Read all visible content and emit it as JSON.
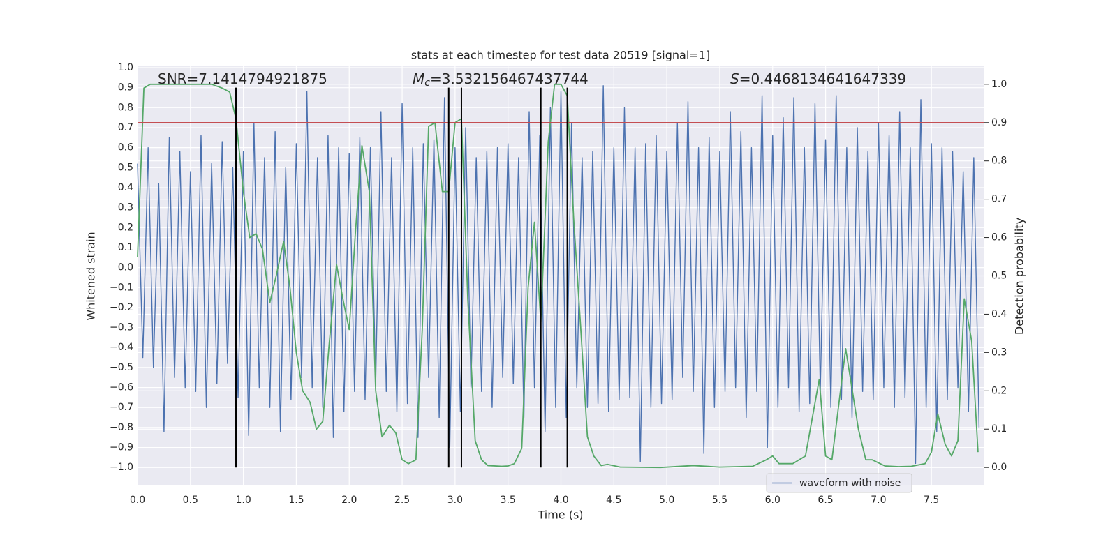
{
  "chart_data": {
    "type": "line",
    "title": "stats at each timestep for test data 20519 [signal=1]",
    "xlabel": "Time (s)",
    "ylabel": "Whitened strain",
    "y2label": "Detection probability",
    "annotations": [
      {
        "value": "SNR=7.1414794921875"
      },
      {
        "symbol": "M",
        "sub": "c",
        "value": "=3.532156467437744"
      },
      {
        "symbol": "S",
        "value": "=0.4468134641647339"
      }
    ],
    "xlim": [
      0,
      8
    ],
    "ylim": [
      -1.09,
      1.007
    ],
    "y2lim": [
      -0.047,
      1.047
    ],
    "xticks": [
      {
        "value": 0,
        "label": "0.0"
      },
      0.5,
      {
        "value": 1,
        "label": "1.0"
      },
      1.5,
      {
        "value": 2,
        "label": "2.0"
      },
      2.5,
      {
        "value": 3,
        "label": "3.0"
      },
      3.5,
      {
        "value": 4,
        "label": "4.0"
      },
      4.5,
      {
        "value": 5,
        "label": "5.0"
      },
      5.5,
      {
        "value": 6,
        "label": "6.0"
      },
      6.5,
      {
        "value": 7,
        "label": "7.0"
      },
      7.5
    ],
    "yticks": [
      {
        "value": -1,
        "label": "−1.0"
      },
      {
        "value": -0.9,
        "label": "−0.9"
      },
      {
        "value": -0.8,
        "label": "−0.8"
      },
      {
        "value": -0.7,
        "label": "−0.7"
      },
      {
        "value": -0.6,
        "label": "−0.6"
      },
      {
        "value": -0.5,
        "label": "−0.5"
      },
      {
        "value": -0.4,
        "label": "−0.4"
      },
      {
        "value": -0.3,
        "label": "−0.3"
      },
      {
        "value": -0.2,
        "label": "−0.2"
      },
      {
        "value": -0.1,
        "label": "−0.1"
      },
      {
        "value": 0,
        "label": "0.0"
      },
      0.1,
      0.2,
      0.3,
      0.4,
      0.5,
      0.6,
      0.7,
      0.8,
      0.9,
      {
        "value": 1,
        "label": "1.0"
      }
    ],
    "y2ticks": [
      {
        "value": 0,
        "label": "0.0"
      },
      0.1,
      0.2,
      0.3,
      0.4,
      0.5,
      0.6,
      0.7,
      0.8,
      0.9,
      {
        "value": 1,
        "label": "1.0"
      }
    ],
    "grid": true,
    "legend": "lower right",
    "threshold": {
      "value": 0.9,
      "axis": "y2",
      "color": "#c44e52"
    },
    "vlines": {
      "x": [
        0.93,
        2.94,
        3.06,
        3.81,
        4.06
      ],
      "span": [
        -1.0,
        0.9
      ],
      "color": "#000000"
    },
    "series": [
      {
        "name": "waveform with noise",
        "color": "#4c72b0",
        "x": [
          0,
          0.05,
          0.1,
          0.15,
          0.2,
          0.25,
          0.3,
          0.35,
          0.4,
          0.45,
          0.5,
          0.55,
          0.6,
          0.65,
          0.7,
          0.75,
          0.8,
          0.85,
          0.9,
          0.95,
          1,
          1.05,
          1.1,
          1.15,
          1.2,
          1.25,
          1.3,
          1.35,
          1.4,
          1.45,
          1.5,
          1.55,
          1.6,
          1.65,
          1.7,
          1.75,
          1.8,
          1.85,
          1.9,
          1.95,
          2,
          2.05,
          2.1,
          2.15,
          2.2,
          2.25,
          2.3,
          2.35,
          2.4,
          2.45,
          2.5,
          2.55,
          2.6,
          2.65,
          2.7,
          2.75,
          2.8,
          2.85,
          2.9,
          2.95,
          3,
          3.05,
          3.1,
          3.15,
          3.2,
          3.25,
          3.3,
          3.35,
          3.4,
          3.45,
          3.5,
          3.55,
          3.6,
          3.65,
          3.7,
          3.75,
          3.8,
          3.85,
          3.9,
          3.95,
          4,
          4.05,
          4.1,
          4.15,
          4.2,
          4.25,
          4.3,
          4.35,
          4.4,
          4.45,
          4.5,
          4.55,
          4.6,
          4.65,
          4.7,
          4.75,
          4.8,
          4.85,
          4.9,
          4.95,
          5,
          5.05,
          5.1,
          5.15,
          5.2,
          5.25,
          5.3,
          5.35,
          5.4,
          5.45,
          5.5,
          5.55,
          5.6,
          5.65,
          5.7,
          5.75,
          5.8,
          5.85,
          5.9,
          5.95,
          6,
          6.05,
          6.1,
          6.15,
          6.2,
          6.25,
          6.3,
          6.35,
          6.4,
          6.45,
          6.5,
          6.55,
          6.6,
          6.65,
          6.7,
          6.75,
          6.8,
          6.85,
          6.9,
          6.95,
          7,
          7.05,
          7.1,
          7.15,
          7.2,
          7.25,
          7.3,
          7.35,
          7.4,
          7.45,
          7.5,
          7.55,
          7.6,
          7.65,
          7.7,
          7.75,
          7.8,
          7.85,
          7.9,
          7.95
        ],
        "values": [
          0.52,
          -0.45,
          0.6,
          -0.5,
          0.42,
          -0.82,
          0.65,
          -0.55,
          0.58,
          -0.6,
          0.48,
          -0.62,
          0.66,
          -0.7,
          0.52,
          -0.58,
          0.63,
          -0.48,
          0.5,
          -0.65,
          0.58,
          -0.84,
          0.72,
          -0.6,
          0.55,
          -0.7,
          0.68,
          -0.82,
          0.5,
          -0.66,
          0.62,
          -0.55,
          0.88,
          -0.6,
          0.55,
          -0.7,
          0.66,
          -0.85,
          0.6,
          -0.72,
          0.57,
          -0.62,
          0.65,
          -0.66,
          0.6,
          -0.58,
          0.78,
          -0.62,
          0.55,
          -0.72,
          0.82,
          -0.68,
          0.6,
          -0.85,
          0.62,
          -0.55,
          0.64,
          -0.75,
          0.85,
          -0.9,
          0.6,
          -0.72,
          0.7,
          -0.6,
          0.55,
          -0.62,
          0.58,
          -0.7,
          0.6,
          -0.55,
          0.62,
          -0.58,
          0.55,
          -0.75,
          0.78,
          -0.6,
          0.66,
          -0.82,
          0.8,
          -0.7,
          0.88,
          -0.75,
          0.72,
          -0.6,
          0.55,
          -0.7,
          0.58,
          -0.68,
          0.91,
          -0.72,
          0.6,
          -0.66,
          0.8,
          -0.65,
          0.6,
          -0.97,
          0.62,
          -0.7,
          0.66,
          -0.68,
          0.58,
          -0.66,
          0.72,
          -0.55,
          0.83,
          -0.62,
          0.6,
          -0.93,
          0.65,
          -0.7,
          0.58,
          -0.62,
          0.78,
          -0.6,
          0.68,
          -0.75,
          0.6,
          -0.62,
          0.86,
          -0.9,
          0.66,
          -0.7,
          0.75,
          -0.6,
          0.85,
          -0.72,
          0.6,
          -0.68,
          0.82,
          -0.62,
          0.64,
          -0.7,
          0.86,
          -0.66,
          0.6,
          -0.75,
          0.7,
          -0.62,
          0.58,
          -0.66,
          0.72,
          -0.6,
          0.66,
          -0.7,
          0.78,
          -0.65,
          0.6,
          -0.98,
          0.84,
          -0.7,
          0.62,
          -0.82,
          0.6,
          -0.66,
          0.58,
          -0.6,
          0.48,
          -0.72,
          0.55,
          -0.8
        ]
      },
      {
        "axis": "y2",
        "color": "#55a868",
        "x": [
          0,
          0.06,
          0.12,
          0.5,
          0.7,
          0.8,
          0.87,
          0.93,
          1.0,
          1.06,
          1.12,
          1.18,
          1.25,
          1.31,
          1.38,
          1.44,
          1.5,
          1.56,
          1.63,
          1.69,
          1.75,
          1.81,
          1.88,
          1.94,
          2.0,
          2.06,
          2.12,
          2.19,
          2.25,
          2.31,
          2.38,
          2.44,
          2.5,
          2.56,
          2.63,
          2.69,
          2.75,
          2.81,
          2.88,
          2.94,
          3.0,
          3.06,
          3.12,
          3.19,
          3.25,
          3.31,
          3.44,
          3.5,
          3.56,
          3.63,
          3.69,
          3.75,
          3.81,
          3.88,
          3.94,
          4.0,
          4.06,
          4.12,
          4.19,
          4.25,
          4.31,
          4.38,
          4.44,
          4.56,
          4.94,
          5.25,
          5.5,
          5.81,
          5.94,
          6.0,
          6.06,
          6.19,
          6.31,
          6.44,
          6.5,
          6.56,
          6.69,
          6.81,
          6.88,
          6.94,
          7.06,
          7.19,
          7.31,
          7.44,
          7.5,
          7.56,
          7.63,
          7.69,
          7.75,
          7.81,
          7.88,
          7.94
        ],
        "values": [
          0.55,
          0.99,
          1.0,
          1.0,
          1.0,
          0.99,
          0.98,
          0.91,
          0.72,
          0.6,
          0.61,
          0.57,
          0.43,
          0.5,
          0.59,
          0.47,
          0.3,
          0.2,
          0.17,
          0.1,
          0.12,
          0.32,
          0.53,
          0.44,
          0.36,
          0.62,
          0.84,
          0.72,
          0.2,
          0.08,
          0.11,
          0.09,
          0.02,
          0.01,
          0.02,
          0.36,
          0.89,
          0.9,
          0.72,
          0.72,
          0.9,
          0.91,
          0.44,
          0.07,
          0.02,
          0.005,
          0.003,
          0.004,
          0.01,
          0.05,
          0.47,
          0.64,
          0.38,
          0.85,
          1.0,
          1.0,
          0.97,
          0.65,
          0.35,
          0.08,
          0.03,
          0.005,
          0.008,
          0.001,
          0.0,
          0.005,
          0.001,
          0.003,
          0.02,
          0.03,
          0.01,
          0.01,
          0.03,
          0.23,
          0.03,
          0.02,
          0.31,
          0.1,
          0.02,
          0.02,
          0.004,
          0.002,
          0.003,
          0.01,
          0.04,
          0.14,
          0.06,
          0.03,
          0.07,
          0.44,
          0.33,
          0.04
        ]
      }
    ]
  }
}
